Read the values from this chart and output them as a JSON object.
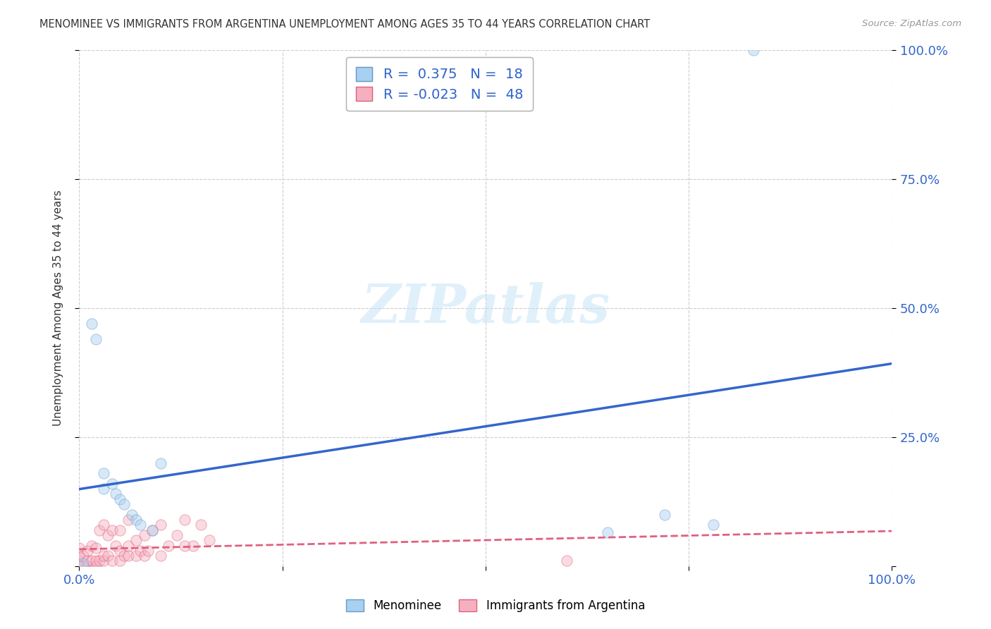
{
  "title": "MENOMINEE VS IMMIGRANTS FROM ARGENTINA UNEMPLOYMENT AMONG AGES 35 TO 44 YEARS CORRELATION CHART",
  "source": "Source: ZipAtlas.com",
  "ylabel": "Unemployment Among Ages 35 to 44 years",
  "xlim": [
    0,
    1.0
  ],
  "ylim": [
    0,
    1.0
  ],
  "menominee_color": "#A8D0F0",
  "menominee_edge": "#6699CC",
  "argentina_color": "#F5B0C0",
  "argentina_edge": "#E06080",
  "blue_line_color": "#3366CC",
  "pink_line_color": "#E06080",
  "R_menominee": 0.375,
  "N_menominee": 18,
  "R_argentina": -0.023,
  "N_argentina": 48,
  "menominee_x": [
    0.005,
    0.015,
    0.02,
    0.03,
    0.03,
    0.04,
    0.045,
    0.05,
    0.055,
    0.065,
    0.07,
    0.075,
    0.09,
    0.1,
    0.65,
    0.72,
    0.78,
    0.83
  ],
  "menominee_y": [
    0.005,
    0.47,
    0.44,
    0.18,
    0.15,
    0.16,
    0.14,
    0.13,
    0.12,
    0.1,
    0.09,
    0.08,
    0.07,
    0.2,
    0.065,
    0.1,
    0.08,
    1.0
  ],
  "argentina_x": [
    0.0,
    0.0,
    0.0,
    0.0,
    0.005,
    0.005,
    0.01,
    0.01,
    0.01,
    0.015,
    0.015,
    0.02,
    0.02,
    0.02,
    0.025,
    0.025,
    0.03,
    0.03,
    0.03,
    0.035,
    0.035,
    0.04,
    0.04,
    0.045,
    0.05,
    0.05,
    0.05,
    0.055,
    0.06,
    0.06,
    0.06,
    0.07,
    0.07,
    0.075,
    0.08,
    0.08,
    0.085,
    0.09,
    0.1,
    0.1,
    0.11,
    0.12,
    0.13,
    0.13,
    0.14,
    0.15,
    0.16,
    0.6
  ],
  "argentina_y": [
    0.0,
    0.01,
    0.02,
    0.035,
    0.0,
    0.02,
    0.0,
    0.01,
    0.03,
    0.01,
    0.04,
    0.0,
    0.01,
    0.035,
    0.01,
    0.07,
    0.01,
    0.02,
    0.08,
    0.02,
    0.06,
    0.01,
    0.07,
    0.04,
    0.01,
    0.03,
    0.07,
    0.02,
    0.02,
    0.04,
    0.09,
    0.02,
    0.05,
    0.03,
    0.02,
    0.06,
    0.03,
    0.07,
    0.02,
    0.08,
    0.04,
    0.06,
    0.04,
    0.09,
    0.04,
    0.08,
    0.05,
    0.01
  ],
  "watermark_text": "ZIPatlas",
  "background_color": "#FFFFFF",
  "grid_color": "#CCCCCC",
  "title_color": "#333333",
  "tick_color": "#3366CC",
  "source_color": "#999999",
  "marker_size": 120,
  "marker_alpha": 0.45
}
